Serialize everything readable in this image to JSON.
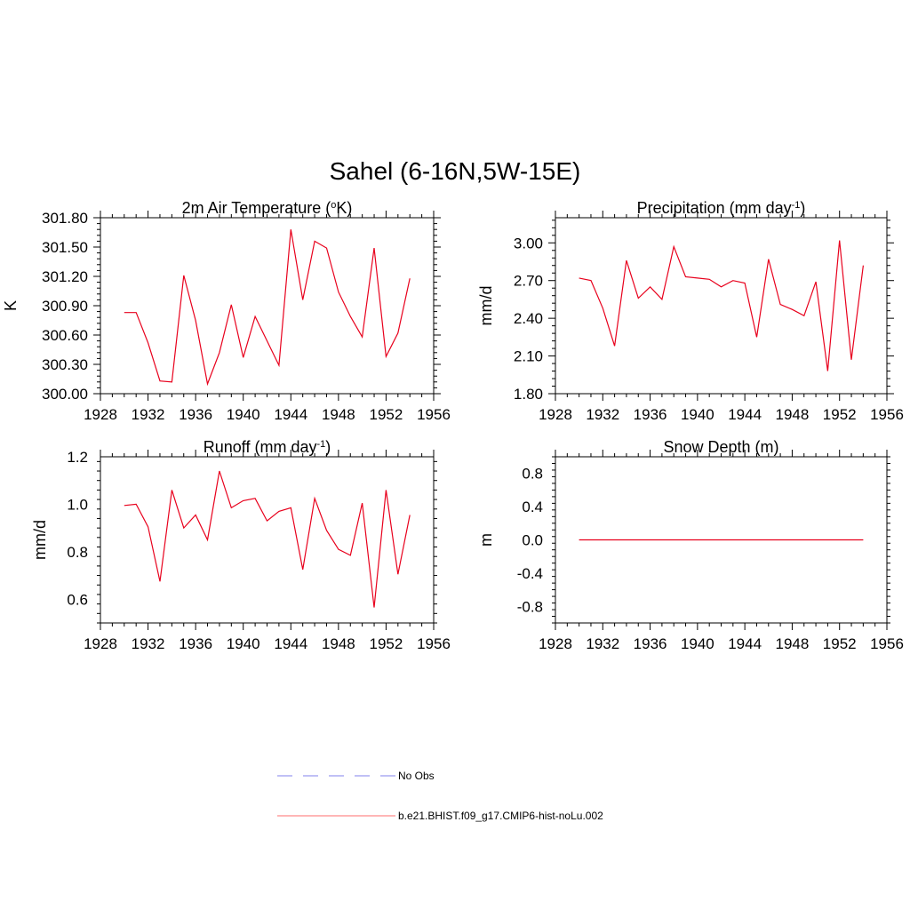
{
  "title": "Sahel (6-16N,5W-15E)",
  "colors": {
    "series": "#e8001c",
    "obs": "#9b9bf0",
    "legend_model": "#ff8a8a",
    "axis": "#000000"
  },
  "chart_data": [
    {
      "type": "line",
      "title": "2m Air Temperature (",
      "title_sup": "o",
      "title_after": "K)",
      "ylabel": "K",
      "xlim": [
        1928,
        1956
      ],
      "ylim": [
        300.0,
        301.8
      ],
      "xticks": [
        "1928",
        "1932",
        "1936",
        "1940",
        "1944",
        "1948",
        "1952",
        "1956"
      ],
      "yticks": [
        "300.00",
        "300.30",
        "300.60",
        "300.90",
        "301.20",
        "301.50",
        "301.80"
      ],
      "x": [
        1930,
        1931,
        1932,
        1933,
        1934,
        1935,
        1936,
        1937,
        1938,
        1939,
        1940,
        1941,
        1942,
        1943,
        1944,
        1945,
        1946,
        1947,
        1948,
        1949,
        1950,
        1951,
        1952,
        1953,
        1954
      ],
      "series": [
        {
          "values": [
            300.83,
            300.83,
            300.52,
            300.13,
            300.12,
            301.21,
            300.75,
            300.1,
            300.42,
            300.91,
            300.37,
            300.79,
            300.54,
            300.29,
            301.68,
            300.96,
            301.56,
            301.49,
            301.04,
            300.79,
            300.58,
            301.49,
            300.38,
            300.62,
            301.18
          ]
        }
      ]
    },
    {
      "type": "line",
      "title": "Precipitation (mm day",
      "title_sup": "-1",
      "title_after": ")",
      "ylabel": "mm/d",
      "xlim": [
        1928,
        1956
      ],
      "ylim": [
        1.8,
        3.2
      ],
      "xticks": [
        "1928",
        "1932",
        "1936",
        "1940",
        "1944",
        "1948",
        "1952",
        "1956"
      ],
      "yticks": [
        "1.80",
        "2.10",
        "2.40",
        "2.70",
        "3.00"
      ],
      "x": [
        1930,
        1931,
        1932,
        1933,
        1934,
        1935,
        1936,
        1937,
        1938,
        1939,
        1940,
        1941,
        1942,
        1943,
        1944,
        1945,
        1946,
        1947,
        1948,
        1949,
        1950,
        1951,
        1952,
        1953,
        1954
      ],
      "series": [
        {
          "values": [
            2.72,
            2.7,
            2.48,
            2.18,
            2.86,
            2.56,
            2.65,
            2.55,
            2.97,
            2.73,
            2.72,
            2.71,
            2.65,
            2.7,
            2.68,
            2.25,
            2.87,
            2.51,
            2.47,
            2.42,
            2.69,
            1.98,
            3.02,
            2.07,
            2.82
          ]
        }
      ]
    },
    {
      "type": "line",
      "title": "Runoff (mm day",
      "title_sup": "-1",
      "title_after": ")",
      "ylabel": "mm/d",
      "xlim": [
        1928,
        1956
      ],
      "ylim": [
        0.5,
        1.2
      ],
      "xticks": [
        "1928",
        "1932",
        "1936",
        "1940",
        "1944",
        "1948",
        "1952",
        "1956"
      ],
      "yticks": [
        "0.6",
        "0.8",
        "1.0",
        "1.2"
      ],
      "x": [
        1930,
        1931,
        1932,
        1933,
        1934,
        1935,
        1936,
        1937,
        1938,
        1939,
        1940,
        1941,
        1942,
        1943,
        1944,
        1945,
        1946,
        1947,
        1948,
        1949,
        1950,
        1951,
        1952,
        1953,
        1954
      ],
      "series": [
        {
          "values": [
            0.995,
            1.0,
            0.905,
            0.675,
            1.06,
            0.9,
            0.955,
            0.85,
            1.14,
            0.985,
            1.015,
            1.025,
            0.93,
            0.97,
            0.985,
            0.725,
            1.025,
            0.89,
            0.81,
            0.785,
            1.005,
            0.565,
            1.06,
            0.705,
            0.955
          ]
        }
      ]
    },
    {
      "type": "line",
      "title": "Snow Depth (m)",
      "title_sup": "",
      "title_after": "",
      "ylabel": "m",
      "xlim": [
        1928,
        1956
      ],
      "ylim": [
        -1.0,
        1.0
      ],
      "xticks": [
        "1928",
        "1932",
        "1936",
        "1940",
        "1944",
        "1948",
        "1952",
        "1956"
      ],
      "yticks": [
        "-0.8",
        "-0.4",
        "0.0",
        "0.4",
        "0.8"
      ],
      "x": [
        1930,
        1931,
        1932,
        1933,
        1934,
        1935,
        1936,
        1937,
        1938,
        1939,
        1940,
        1941,
        1942,
        1943,
        1944,
        1945,
        1946,
        1947,
        1948,
        1949,
        1950,
        1951,
        1952,
        1953,
        1954
      ],
      "series": [
        {
          "values": [
            0,
            0,
            0,
            0,
            0,
            0,
            0,
            0,
            0,
            0,
            0,
            0,
            0,
            0,
            0,
            0,
            0,
            0,
            0,
            0,
            0,
            0,
            0,
            0,
            0
          ]
        }
      ]
    }
  ],
  "legend": {
    "items": [
      {
        "label": "No Obs",
        "style": "dashed"
      },
      {
        "label": "b.e21.BHIST.f09_g17.CMIP6-hist-noLu.002",
        "style": "solid"
      }
    ]
  }
}
